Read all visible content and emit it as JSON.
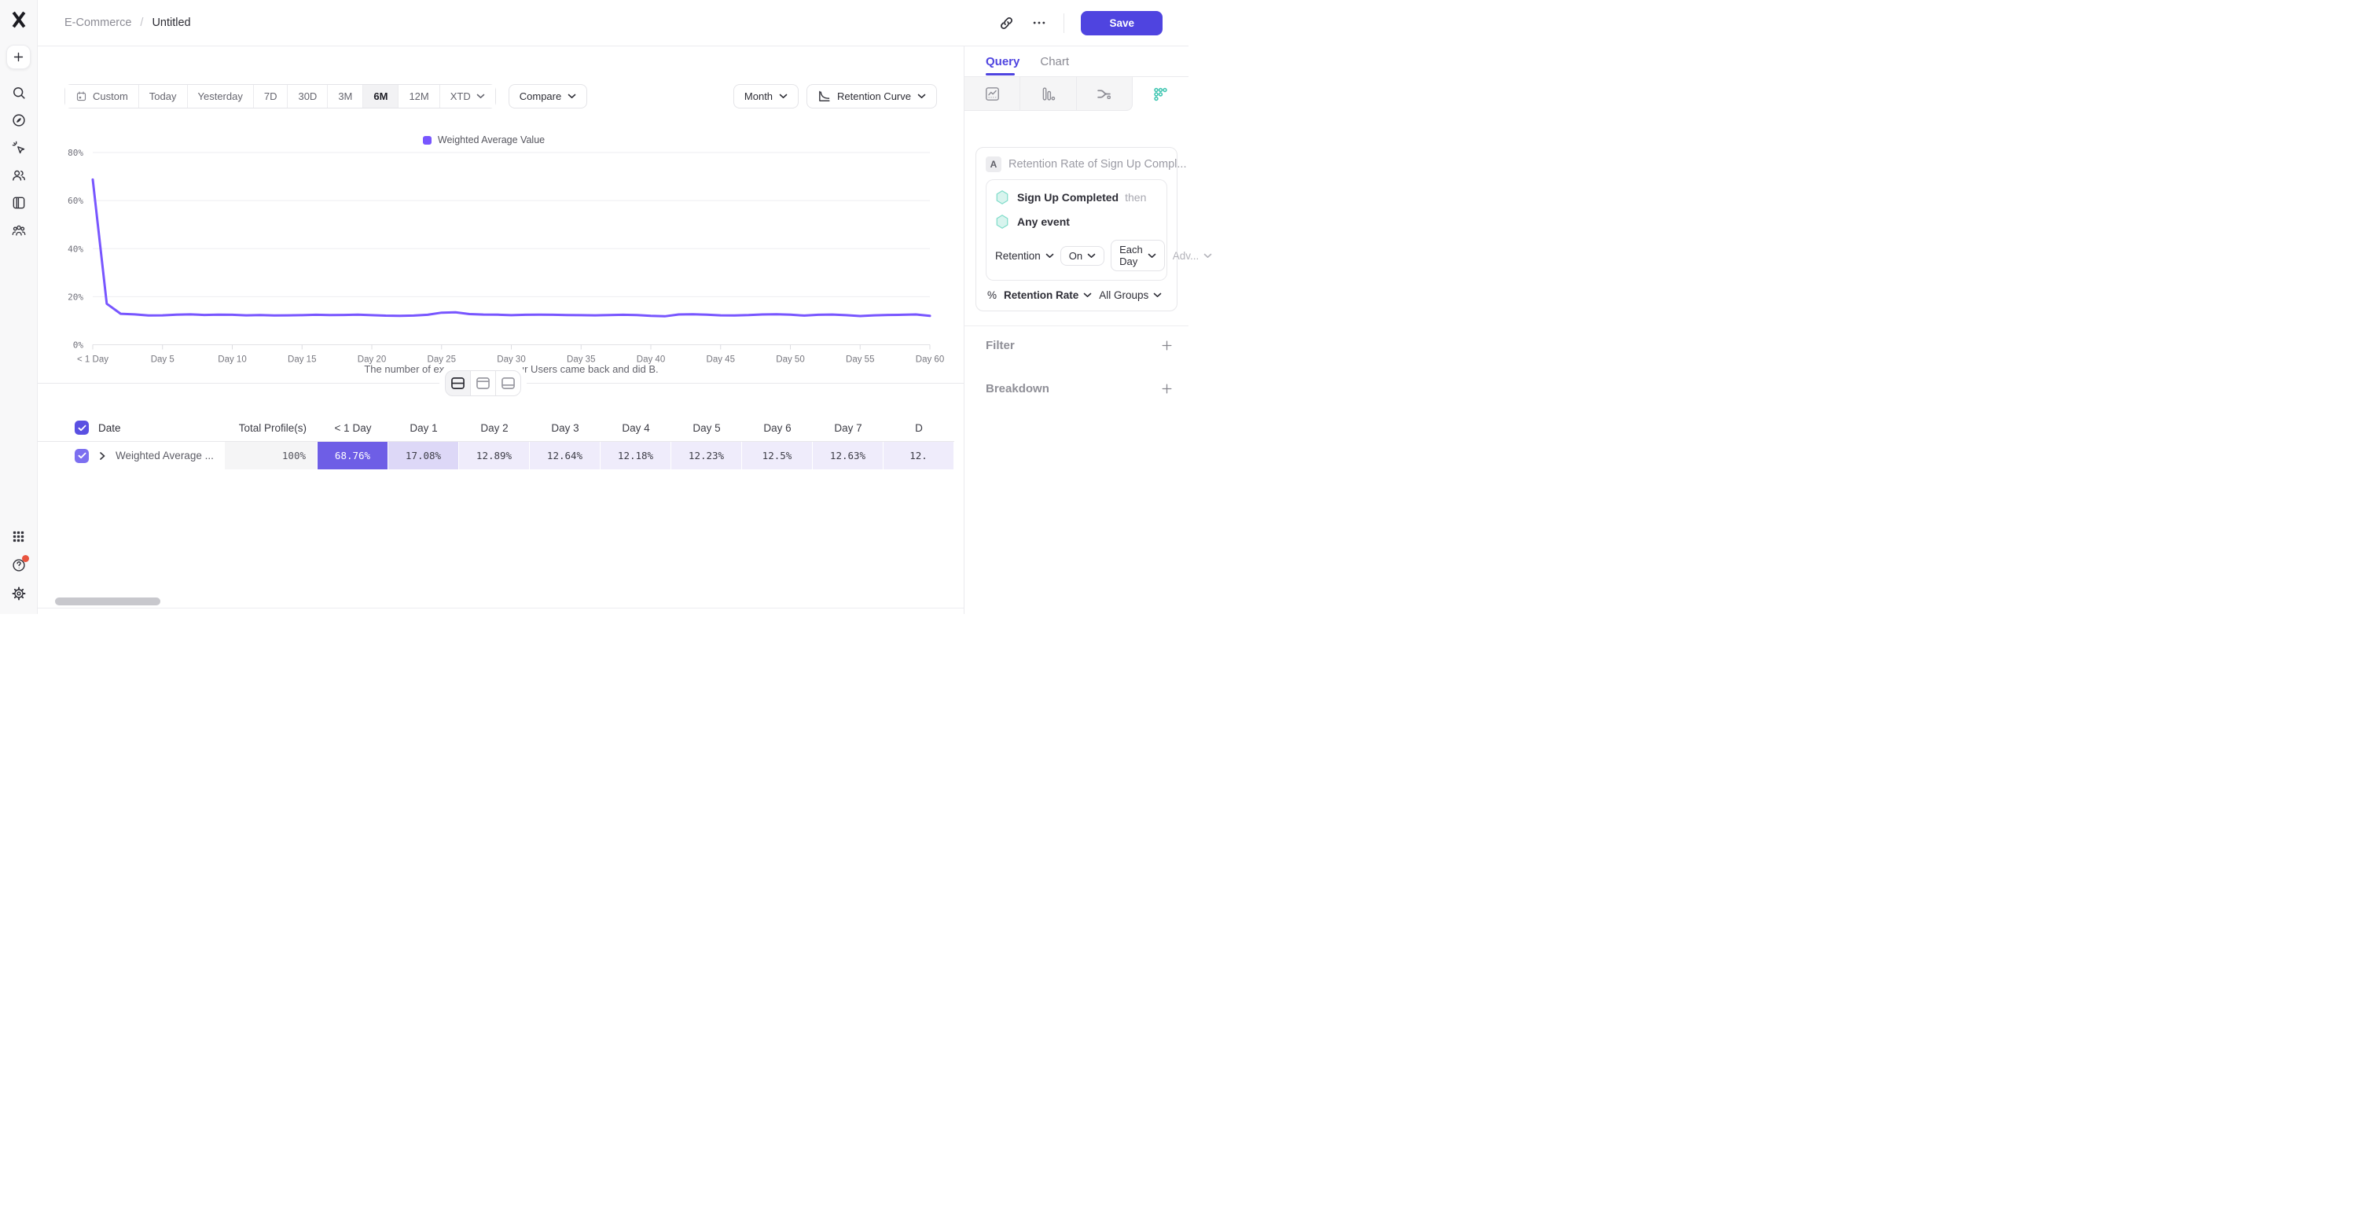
{
  "colors": {
    "accent": "#4F44E0",
    "line": "#7856FF",
    "teal": "#3FC6B1",
    "cell_solid": "#6E5EE6",
    "cell_day1": "#DDD8F7",
    "cell_light": "#EFECFB",
    "checkbox_header": "#5A50E2",
    "checkbox_row": "#7C6FF0",
    "notification": "#E8543F"
  },
  "sidebar": {
    "items": [
      "mixpanel-logo",
      "plus-icon",
      "search-icon",
      "compass-icon",
      "cursor-click-icon",
      "users-icon",
      "collection-icon",
      "group-icon"
    ],
    "bottom_items": [
      "apps-grid-icon",
      "help-icon",
      "gear-icon"
    ]
  },
  "header": {
    "breadcrumb_root": "E-Commerce",
    "breadcrumb_sep": "/",
    "breadcrumb_current": "Untitled",
    "save_label": "Save",
    "icons": [
      "link-icon",
      "more-options-icon"
    ]
  },
  "toolbar": {
    "date_ranges": [
      "Custom",
      "Today",
      "Yesterday",
      "7D",
      "30D",
      "3M",
      "6M",
      "12M",
      "XTD"
    ],
    "selected_range": "6M",
    "compare_label": "Compare",
    "granularity_label": "Month",
    "chart_type_label": "Retention Curve"
  },
  "chart_data": {
    "type": "line",
    "title": "",
    "legend": [
      "Weighted Average Value"
    ],
    "legend_position": "top",
    "grid": "horizontal",
    "ylim": [
      0,
      80
    ],
    "y_ticks": [
      "0%",
      "20%",
      "40%",
      "60%",
      "80%"
    ],
    "x_ticks": [
      {
        "pos": 0,
        "label": "< 1 Day"
      },
      {
        "pos": 5,
        "label": "Day 5"
      },
      {
        "pos": 10,
        "label": "Day 10"
      },
      {
        "pos": 15,
        "label": "Day 15"
      },
      {
        "pos": 20,
        "label": "Day 20"
      },
      {
        "pos": 25,
        "label": "Day 25"
      },
      {
        "pos": 30,
        "label": "Day 30"
      },
      {
        "pos": 35,
        "label": "Day 35"
      },
      {
        "pos": 40,
        "label": "Day 40"
      },
      {
        "pos": 45,
        "label": "Day 45"
      },
      {
        "pos": 50,
        "label": "Day 50"
      },
      {
        "pos": 55,
        "label": "Day 55"
      },
      {
        "pos": 60,
        "label": "Day 60"
      }
    ],
    "xlabel": "The number of exact days later your Users came back and did B.",
    "series": [
      {
        "name": "Weighted Average Value",
        "color": "#7856FF",
        "values": [
          68.76,
          17.08,
          12.89,
          12.64,
          12.18,
          12.23,
          12.5,
          12.63,
          12.4,
          12.5,
          12.45,
          12.25,
          12.35,
          12.2,
          12.25,
          12.3,
          12.45,
          12.35,
          12.4,
          12.5,
          12.3,
          12.1,
          12.05,
          12.15,
          12.45,
          13.35,
          13.5,
          12.75,
          12.55,
          12.5,
          12.3,
          12.45,
          12.5,
          12.45,
          12.35,
          12.3,
          12.25,
          12.35,
          12.45,
          12.35,
          12.0,
          11.85,
          12.6,
          12.7,
          12.5,
          12.25,
          12.2,
          12.35,
          12.6,
          12.65,
          12.5,
          12.15,
          12.45,
          12.55,
          12.3,
          11.95,
          12.25,
          12.4,
          12.45,
          12.6,
          12.0
        ]
      }
    ]
  },
  "table": {
    "columns": [
      "Date",
      "Total Profile(s)",
      "< 1 Day",
      "Day 1",
      "Day 2",
      "Day 3",
      "Day 4",
      "Day 5",
      "Day 6",
      "Day 7"
    ],
    "truncated_column": "D",
    "row": {
      "label": "Weighted Average ...",
      "total": "100%",
      "values": [
        "68.76%",
        "17.08%",
        "12.89%",
        "12.64%",
        "12.18%",
        "12.23%",
        "12.5%",
        "12.63%"
      ],
      "truncated_value": "12."
    }
  },
  "panel": {
    "tabs": [
      "Query",
      "Chart"
    ],
    "active_tab": "Query",
    "report_types": [
      "insights",
      "funnels",
      "flows",
      "retention"
    ],
    "active_report": "retention",
    "query": {
      "badge": "A",
      "title": "Retention Rate of Sign Up Compl...",
      "events": [
        {
          "name": "Sign Up Completed",
          "suffix": "then"
        },
        {
          "name": "Any event",
          "suffix": ""
        }
      ],
      "controls": {
        "mode": "Retention",
        "on": "On",
        "interval": "Each Day",
        "advanced": "Adv..."
      },
      "metric": {
        "prefix": "%",
        "name": "Retention Rate",
        "groups": "All Groups"
      }
    },
    "sections": {
      "filter": "Filter",
      "breakdown": "Breakdown"
    }
  }
}
